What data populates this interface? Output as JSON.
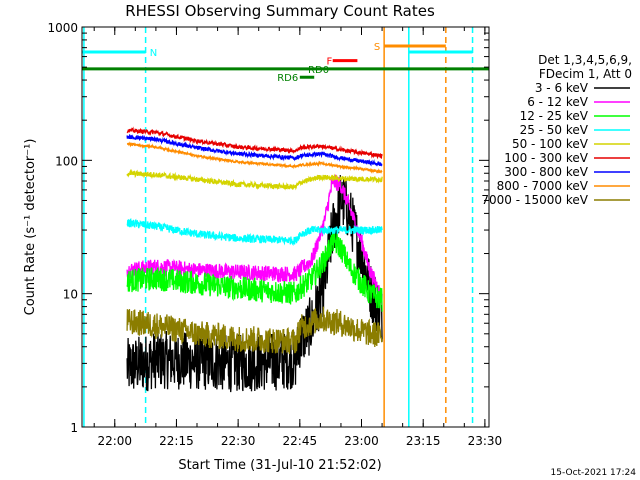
{
  "chart_data": {
    "type": "line",
    "title": "RHESSI Observing Summary Count Rates",
    "xlabel": "Start Time (31-Jul-10 21:52:02)",
    "ylabel": "Count Rate (s⁻¹ detector⁻¹)",
    "y_scale": "log",
    "ylim": [
      1,
      1000
    ],
    "xlim": [
      "21:52:02",
      "23:31:00"
    ],
    "x_ticks": [
      "22:00",
      "22:15",
      "22:30",
      "22:45",
      "23:00",
      "23:15",
      "23:30"
    ],
    "y_ticks": [
      "1",
      "10",
      "100",
      "1000"
    ],
    "timestamp": "15-Oct-2021 17:24",
    "legend": {
      "placement": "right",
      "header1": "Det 1,3,4,5,6,9,",
      "header2": "FDecim 1, Att 0",
      "entries": [
        {
          "label": "3 - 6 keV",
          "color": "#000000"
        },
        {
          "label": "6 - 12 keV",
          "color": "#ff00ff"
        },
        {
          "label": "12 - 25 keV",
          "color": "#00ff00"
        },
        {
          "label": "25 - 50 keV",
          "color": "#00ffff"
        },
        {
          "label": "50 - 100 keV",
          "color": "#d4d400"
        },
        {
          "label": "100 - 300 keV",
          "color": "#e60000"
        },
        {
          "label": "300 - 800 keV",
          "color": "#0000ff"
        },
        {
          "label": "800 - 7000 keV",
          "color": "#ff8c00"
        },
        {
          "label": "7000 - 15000 keV",
          "color": "#8b7d00"
        }
      ]
    },
    "series": [
      {
        "name": "3 - 6 keV",
        "color": "#000000",
        "noise": 0.22,
        "points": [
          [
            "22:03:00",
            2.8
          ],
          [
            "22:07:00",
            3.0
          ],
          [
            "22:10:00",
            3.2
          ],
          [
            "22:20:00",
            3.1
          ],
          [
            "22:30:00",
            3.0
          ],
          [
            "22:40:00",
            3.1
          ],
          [
            "22:44:00",
            3.2
          ],
          [
            "22:45:00",
            4.5
          ],
          [
            "22:48:00",
            6.0
          ],
          [
            "22:51:00",
            12.0
          ],
          [
            "22:53:00",
            30.0
          ],
          [
            "22:55:00",
            52.0
          ],
          [
            "22:57:00",
            40.0
          ],
          [
            "23:00:00",
            20.0
          ],
          [
            "23:02:00",
            11.0
          ],
          [
            "23:04:00",
            8.0
          ],
          [
            "23:05:00",
            7.0
          ]
        ]
      },
      {
        "name": "6 - 12 keV",
        "color": "#ff00ff",
        "noise": 0.06,
        "points": [
          [
            "22:03:00",
            15.0
          ],
          [
            "22:10:00",
            16.0
          ],
          [
            "22:20:00",
            15.0
          ],
          [
            "22:30:00",
            14.5
          ],
          [
            "22:44:00",
            14.0
          ],
          [
            "22:45:00",
            15.0
          ],
          [
            "22:48:00",
            18.0
          ],
          [
            "22:51:00",
            35.0
          ],
          [
            "22:53:00",
            70.0
          ],
          [
            "22:55:00",
            65.0
          ],
          [
            "22:57:00",
            45.0
          ],
          [
            "23:00:00",
            25.0
          ],
          [
            "23:02:00",
            15.0
          ],
          [
            "23:04:00",
            11.0
          ],
          [
            "23:05:00",
            9.0
          ]
        ]
      },
      {
        "name": "12 - 25 keV",
        "color": "#00ff00",
        "noise": 0.09,
        "points": [
          [
            "22:03:00",
            12.5
          ],
          [
            "22:10:00",
            13.0
          ],
          [
            "22:20:00",
            12.0
          ],
          [
            "22:30:00",
            11.0
          ],
          [
            "22:44:00",
            10.0
          ],
          [
            "22:45:00",
            11.0
          ],
          [
            "22:48:00",
            13.0
          ],
          [
            "22:51:00",
            18.0
          ],
          [
            "22:53:00",
            25.0
          ],
          [
            "22:55:00",
            22.0
          ],
          [
            "22:57:00",
            16.0
          ],
          [
            "23:00:00",
            12.0
          ],
          [
            "23:02:00",
            10.0
          ],
          [
            "23:05:00",
            9.0
          ]
        ]
      },
      {
        "name": "25 - 50 keV",
        "color": "#00ffff",
        "noise": 0.03,
        "points": [
          [
            "22:03:00",
            34.0
          ],
          [
            "22:10:00",
            32.0
          ],
          [
            "22:20:00",
            28.0
          ],
          [
            "22:30:00",
            26.0
          ],
          [
            "22:44:00",
            25.0
          ],
          [
            "22:45:00",
            28.0
          ],
          [
            "22:48:00",
            30.0
          ],
          [
            "22:55:00",
            30.0
          ],
          [
            "23:05:00",
            30.0
          ]
        ]
      },
      {
        "name": "50 - 100 keV",
        "color": "#d4d400",
        "noise": 0.02,
        "points": [
          [
            "22:03:00",
            80.0
          ],
          [
            "22:10:00",
            78.0
          ],
          [
            "22:20:00",
            72.0
          ],
          [
            "22:30:00",
            66.0
          ],
          [
            "22:44:00",
            63.0
          ],
          [
            "22:45:00",
            68.0
          ],
          [
            "22:50:00",
            75.0
          ],
          [
            "22:55:00",
            73.0
          ],
          [
            "23:05:00",
            72.0
          ]
        ]
      },
      {
        "name": "100 - 300 keV",
        "color": "#e60000",
        "noise": 0.015,
        "points": [
          [
            "22:03:00",
            168.0
          ],
          [
            "22:10:00",
            162.0
          ],
          [
            "22:20:00",
            140.0
          ],
          [
            "22:30:00",
            126.0
          ],
          [
            "22:44:00",
            118.0
          ],
          [
            "22:45:00",
            124.0
          ],
          [
            "22:50:00",
            128.0
          ],
          [
            "22:55:00",
            120.0
          ],
          [
            "23:05:00",
            108.0
          ]
        ]
      },
      {
        "name": "300 - 800 keV",
        "color": "#0000ff",
        "noise": 0.015,
        "points": [
          [
            "22:03:00",
            150.0
          ],
          [
            "22:10:00",
            144.0
          ],
          [
            "22:20:00",
            124.0
          ],
          [
            "22:30:00",
            112.0
          ],
          [
            "22:44:00",
            104.0
          ],
          [
            "22:45:00",
            108.0
          ],
          [
            "22:50:00",
            112.0
          ],
          [
            "22:55:00",
            104.0
          ],
          [
            "23:05:00",
            93.0
          ]
        ]
      },
      {
        "name": "800 - 7000 keV",
        "color": "#ff8c00",
        "noise": 0.008,
        "points": [
          [
            "22:03:00",
            133.0
          ],
          [
            "22:10:00",
            126.0
          ],
          [
            "22:20:00",
            108.0
          ],
          [
            "22:30:00",
            97.0
          ],
          [
            "22:44:00",
            90.0
          ],
          [
            "22:45:00",
            92.0
          ],
          [
            "22:50:00",
            95.0
          ],
          [
            "22:55:00",
            90.0
          ],
          [
            "23:05:00",
            82.0
          ]
        ]
      },
      {
        "name": "7000 - 15000 keV",
        "color": "#8b7d00",
        "noise": 0.1,
        "points": [
          [
            "22:03:00",
            6.2
          ],
          [
            "22:10:00",
            5.8
          ],
          [
            "22:20:00",
            5.0
          ],
          [
            "22:30:00",
            4.6
          ],
          [
            "22:44:00",
            4.4
          ],
          [
            "22:45:00",
            5.5
          ],
          [
            "22:50:00",
            6.5
          ],
          [
            "22:55:00",
            6.0
          ],
          [
            "23:00:00",
            5.2
          ],
          [
            "23:05:00",
            4.8
          ]
        ]
      }
    ],
    "vlines": [
      {
        "time": "21:52:30",
        "color": "#00ffff",
        "style": "solid"
      },
      {
        "time": "22:07:30",
        "color": "#00ffff",
        "style": "dashed"
      },
      {
        "time": "23:11:30",
        "color": "#00ffff",
        "style": "solid"
      },
      {
        "time": "23:27:00",
        "color": "#00ffff",
        "style": "dashed"
      },
      {
        "time": "23:05:30",
        "color": "#ff8c00",
        "style": "solid"
      },
      {
        "time": "23:20:30",
        "color": "#ff8c00",
        "style": "dashed"
      }
    ],
    "flag_bars": [
      {
        "label": "N",
        "color": "#00ffff",
        "y": 650,
        "segments": [
          [
            "21:52:02",
            "22:07:30"
          ],
          [
            "23:11:30",
            "23:27:00"
          ]
        ],
        "label_at": "22:08:30"
      },
      {
        "label": "S",
        "color": "#ff8c00",
        "y": 720,
        "segments": [
          [
            "23:05:30",
            "23:20:30"
          ]
        ],
        "label_at": "23:03:00"
      },
      {
        "label": "F",
        "color": "#ff0000",
        "y": 560,
        "segments": [
          [
            "22:53:00",
            "22:59:00"
          ]
        ],
        "label_at": "22:51:30"
      },
      {
        "label": "RD0",
        "color": "#008000",
        "y": 485,
        "segments": [
          [
            "21:52:02",
            "23:31:00"
          ]
        ],
        "label_at": "22:47:00"
      },
      {
        "label": "RD6",
        "color": "#008000",
        "y": 420,
        "segments": [
          [
            "22:45:00",
            "22:48:30"
          ]
        ],
        "label_at": "22:39:30"
      }
    ]
  }
}
